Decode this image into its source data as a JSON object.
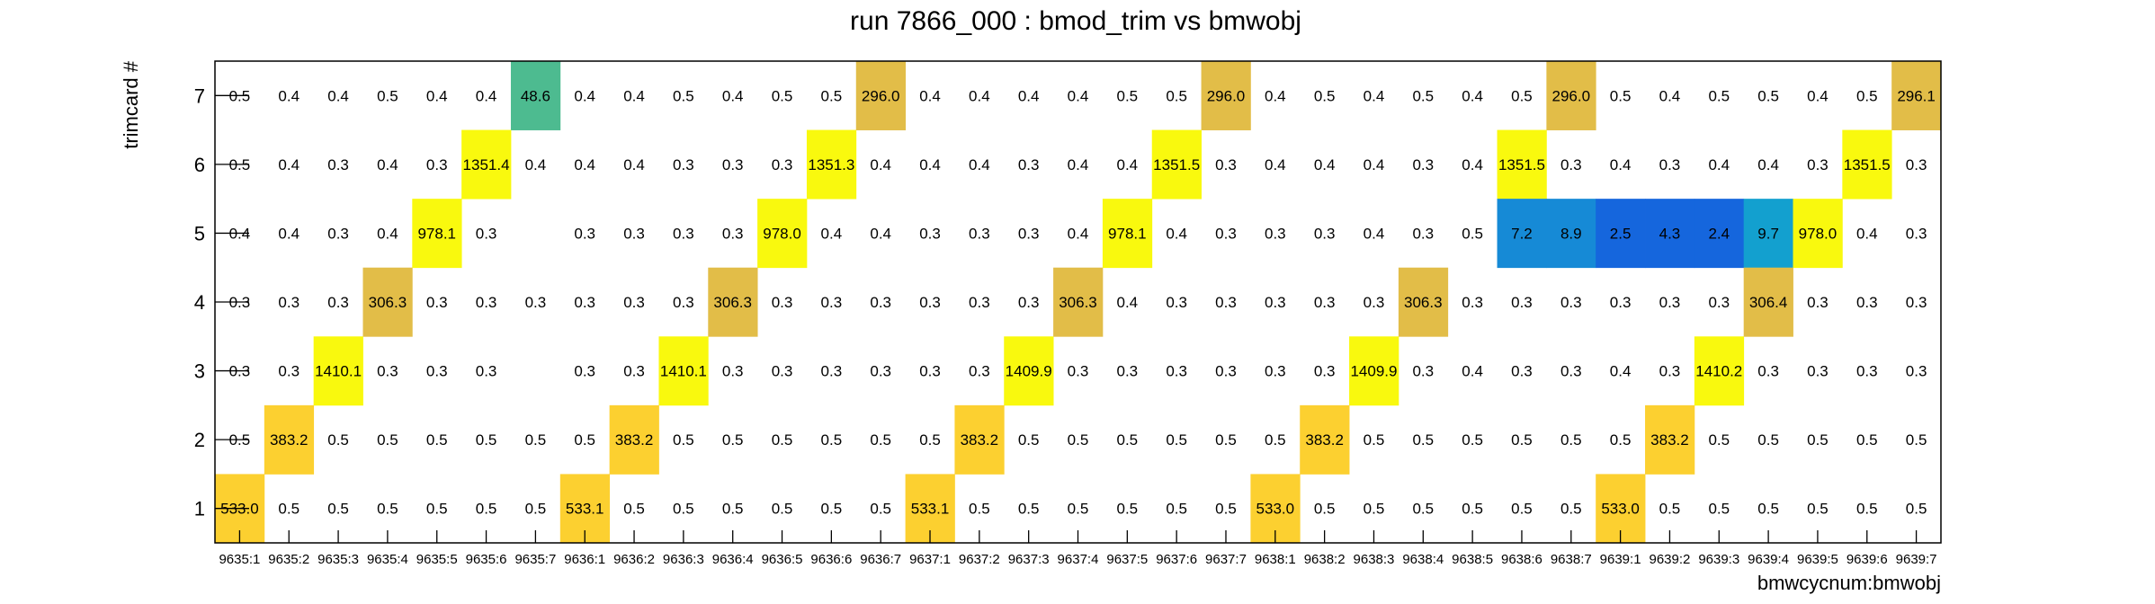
{
  "chart_data": {
    "type": "heatmap",
    "title": "run 7866_000 : bmod_trim vs bmwobj",
    "xlabel": "bmwcycnum:bmwobj",
    "ylabel": "trimcard #",
    "x_categories": [
      "9635:1",
      "9635:2",
      "9635:3",
      "9635:4",
      "9635:5",
      "9635:6",
      "9635:7",
      "9636:1",
      "9636:2",
      "9636:3",
      "9636:4",
      "9636:5",
      "9636:6",
      "9636:7",
      "9637:1",
      "9637:2",
      "9637:3",
      "9637:4",
      "9637:5",
      "9637:6",
      "9637:7",
      "9638:1",
      "9638:2",
      "9638:3",
      "9638:4",
      "9638:5",
      "9638:6",
      "9638:7",
      "9639:1",
      "9639:2",
      "9639:3",
      "9639:4",
      "9639:5",
      "9639:6",
      "9639:7"
    ],
    "y_categories": [
      "1",
      "2",
      "3",
      "4",
      "5",
      "6",
      "7"
    ],
    "rows": [
      {
        "y": "7",
        "values": [
          "0.5",
          "0.4",
          "0.4",
          "0.5",
          "0.4",
          "0.4",
          "48.6",
          "0.4",
          "0.4",
          "0.5",
          "0.4",
          "0.5",
          "0.5",
          "296.0",
          "0.4",
          "0.4",
          "0.4",
          "0.4",
          "0.5",
          "0.5",
          "296.0",
          "0.4",
          "0.5",
          "0.4",
          "0.5",
          "0.4",
          "0.5",
          "296.0",
          "0.5",
          "0.4",
          "0.5",
          "0.5",
          "0.4",
          "0.5",
          "296.1"
        ]
      },
      {
        "y": "6",
        "values": [
          "0.5",
          "0.4",
          "0.3",
          "0.4",
          "0.3",
          "1351.4",
          "0.4",
          "0.4",
          "0.4",
          "0.3",
          "0.3",
          "0.3",
          "1351.3",
          "0.4",
          "0.4",
          "0.4",
          "0.3",
          "0.4",
          "0.4",
          "1351.5",
          "0.3",
          "0.4",
          "0.4",
          "0.4",
          "0.3",
          "0.4",
          "1351.5",
          "0.3",
          "0.4",
          "0.3",
          "0.4",
          "0.4",
          "0.3",
          "1351.5",
          "0.3"
        ]
      },
      {
        "y": "5",
        "values": [
          "0.4",
          "0.4",
          "0.3",
          "0.4",
          "978.1",
          "0.3",
          "",
          "0.3",
          "0.3",
          "0.3",
          "0.3",
          "978.0",
          "0.4",
          "0.4",
          "0.3",
          "0.3",
          "0.3",
          "0.4",
          "978.1",
          "0.4",
          "0.3",
          "0.3",
          "0.3",
          "0.4",
          "0.3",
          "0.5",
          "7.2",
          "8.9",
          "2.5",
          "4.3",
          "2.4",
          "9.7",
          "978.0",
          "0.4",
          "0.3"
        ]
      },
      {
        "y": "4",
        "values": [
          "0.3",
          "0.3",
          "0.3",
          "306.3",
          "0.3",
          "0.3",
          "0.3",
          "0.3",
          "0.3",
          "0.3",
          "306.3",
          "0.3",
          "0.3",
          "0.3",
          "0.3",
          "0.3",
          "0.3",
          "306.3",
          "0.4",
          "0.3",
          "0.3",
          "0.3",
          "0.3",
          "0.3",
          "306.3",
          "0.3",
          "0.3",
          "0.3",
          "0.3",
          "0.3",
          "0.3",
          "306.4",
          "0.3",
          "0.3",
          "0.3"
        ]
      },
      {
        "y": "3",
        "values": [
          "0.3",
          "0.3",
          "1410.1",
          "0.3",
          "0.3",
          "0.3",
          "",
          "0.3",
          "0.3",
          "1410.1",
          "0.3",
          "0.3",
          "0.3",
          "0.3",
          "0.3",
          "0.3",
          "1409.9",
          "0.3",
          "0.3",
          "0.3",
          "0.3",
          "0.3",
          "0.3",
          "1409.9",
          "0.3",
          "0.4",
          "0.3",
          "0.3",
          "0.4",
          "0.3",
          "1410.2",
          "0.3",
          "0.3",
          "0.3",
          "0.3"
        ]
      },
      {
        "y": "2",
        "values": [
          "0.5",
          "383.2",
          "0.5",
          "0.5",
          "0.5",
          "0.5",
          "0.5",
          "0.5",
          "383.2",
          "0.5",
          "0.5",
          "0.5",
          "0.5",
          "0.5",
          "0.5",
          "383.2",
          "0.5",
          "0.5",
          "0.5",
          "0.5",
          "0.5",
          "0.5",
          "383.2",
          "0.5",
          "0.5",
          "0.5",
          "0.5",
          "0.5",
          "0.5",
          "383.2",
          "0.5",
          "0.5",
          "0.5",
          "0.5",
          "0.5"
        ]
      },
      {
        "y": "1",
        "values": [
          "533.0",
          "0.5",
          "0.5",
          "0.5",
          "0.5",
          "0.5",
          "0.5",
          "533.1",
          "0.5",
          "0.5",
          "0.5",
          "0.5",
          "0.5",
          "0.5",
          "533.1",
          "0.5",
          "0.5",
          "0.5",
          "0.5",
          "0.5",
          "0.5",
          "533.0",
          "0.5",
          "0.5",
          "0.5",
          "0.5",
          "0.5",
          "0.5",
          "533.0",
          "0.5",
          "0.5",
          "0.5",
          "0.5",
          "0.5",
          "0.5"
        ]
      }
    ],
    "palette": {
      "levels": [
        {
          "max": 5,
          "color": "#1566dd"
        },
        {
          "max": 9.5,
          "color": "#168ad6"
        },
        {
          "max": 30,
          "color": "#13a0cf"
        },
        {
          "max": 100,
          "color": "#4dbb90"
        },
        {
          "max": 350,
          "color": "#e2bd48"
        },
        {
          "max": 600,
          "color": "#fcd030"
        },
        {
          "max": 100000,
          "color": "#f9f90e"
        }
      ],
      "filled_min": 1.0
    },
    "grid": false
  }
}
